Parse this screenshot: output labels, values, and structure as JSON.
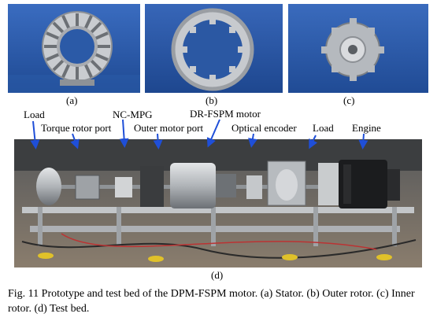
{
  "subfigures": {
    "a": "(a)",
    "b": "(b)",
    "c": "(c)",
    "d": "(d)"
  },
  "labels": {
    "load_left": "Load",
    "torque_rotor_port": "Torque rotor port",
    "nc_mpg": "NC-MPG",
    "outer_motor_port": "Outer motor port",
    "dr_fspm_motor": "DR-FSPM motor",
    "optical_encoder": "Optical encoder",
    "load_right": "Load",
    "engine": "Engine"
  },
  "caption": "Fig. 11 Prototype and test bed of the DPM-FSPM motor. (a) Stator. (b) Outer rotor. (c) Inner rotor. (d) Test bed.",
  "colors": {
    "backdrop_blue": "#2e5fae",
    "arrow_blue": "#1f4fd8",
    "metal": "#b9bcc0"
  }
}
